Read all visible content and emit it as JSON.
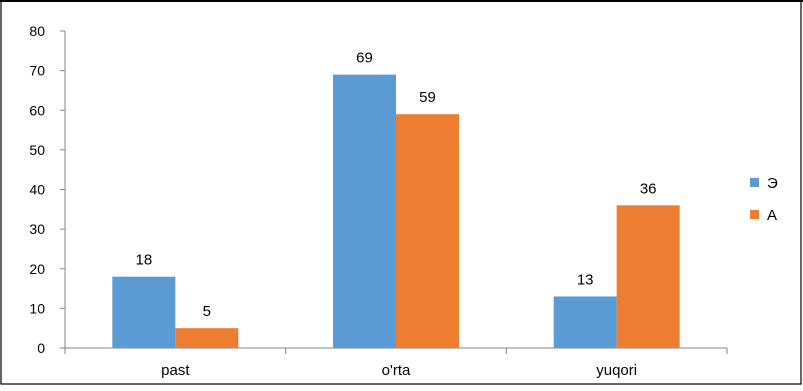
{
  "chart_data": {
    "type": "bar",
    "title": "",
    "xlabel": "",
    "ylabel": "",
    "categories": [
      "past",
      "o'rta",
      "yuqori"
    ],
    "series": [
      {
        "name": "Э",
        "values": [
          18,
          69,
          13
        ],
        "color": "#5b9bd5"
      },
      {
        "name": "A",
        "values": [
          5,
          59,
          36
        ],
        "color": "#ed7d31"
      }
    ],
    "ylim": [
      0,
      80
    ],
    "yticks": [
      "0",
      "10",
      "20",
      "30",
      "40",
      "50",
      "60",
      "70",
      "80"
    ],
    "grid": false,
    "data_labels": true,
    "legend": "right"
  }
}
